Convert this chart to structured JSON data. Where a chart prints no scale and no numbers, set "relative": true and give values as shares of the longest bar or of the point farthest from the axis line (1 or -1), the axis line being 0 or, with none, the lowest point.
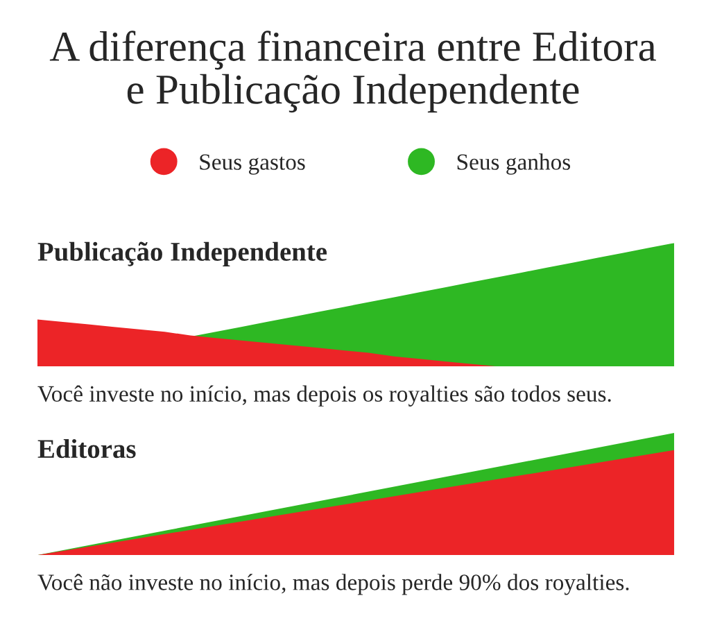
{
  "chart_data": [
    {
      "type": "area",
      "title": "A diferença financeira entre Editora\ne Publicação Independente",
      "subtitle": "Publicação Independente",
      "relative": true,
      "legend": "top",
      "categories": [
        null,
        null,
        null,
        null,
        null,
        null,
        null,
        null,
        null,
        null,
        null,
        null,
        null,
        null,
        null,
        null,
        null,
        null,
        null,
        null,
        null,
        null,
        null,
        null,
        null,
        null
      ],
      "series": [
        {
          "name": "Seus ganhos",
          "color": "#2eb823",
          "values": [
            null,
            null,
            null,
            null,
            null,
            null,
            0.24,
            0.28,
            0.32,
            0.36,
            0.4,
            0.44,
            0.48,
            0.52,
            0.56,
            0.6,
            0.64,
            0.68,
            0.72,
            0.76,
            0.8,
            0.84,
            0.88,
            0.92,
            0.96,
            1
          ]
        },
        {
          "name": "Seus gastos",
          "color": "#ec2427",
          "values": [
            0.38,
            0.36,
            0.34,
            0.32,
            0.3,
            0.28,
            0.25,
            0.23,
            0.21,
            0.19,
            0.17,
            0.15,
            0.13,
            0.11,
            0.08,
            0.06,
            0.04,
            0.02,
            0,
            0,
            0,
            0,
            0,
            0,
            0,
            0
          ]
        }
      ],
      "annotations": [
        "Você investe no início, mas depois os royalties são todos seus."
      ]
    },
    {
      "type": "area",
      "title": "Editoras",
      "relative": true,
      "categories": [
        null,
        null
      ],
      "series": [
        {
          "color": "#2eb823",
          "values": [
            0,
            1
          ]
        },
        {
          "color": "#ec2427",
          "values": [
            0,
            0.86
          ]
        }
      ],
      "annotations": [
        "Você não investe no início, mas depois perde 90% dos royalties."
      ]
    }
  ]
}
